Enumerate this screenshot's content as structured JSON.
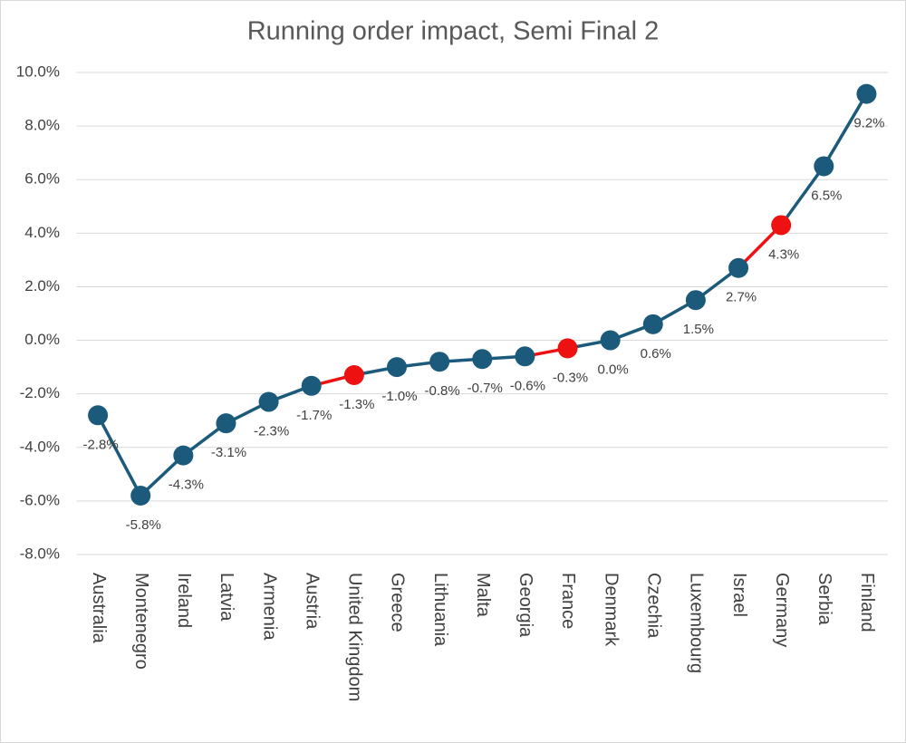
{
  "chart_data": {
    "type": "line",
    "title": "Running order impact, Semi Final 2",
    "categories": [
      "Australia",
      "Montenegro",
      "Ireland",
      "Latvia",
      "Armenia",
      "Austria",
      "United Kingdom",
      "Greece",
      "Lithuania",
      "Malta",
      "Georgia",
      "France",
      "Denmark",
      "Czechia",
      "Luxembourg",
      "Israel",
      "Germany",
      "Serbia",
      "Finland"
    ],
    "values": [
      -2.8,
      -5.8,
      -4.3,
      -3.1,
      -2.3,
      -1.7,
      -1.3,
      -1.0,
      -0.8,
      -0.7,
      -0.6,
      -0.3,
      0.0,
      0.6,
      1.5,
      2.7,
      4.3,
      6.5,
      9.2
    ],
    "value_labels": [
      "-2.8%",
      "-5.8%",
      "-4.3%",
      "-3.1%",
      "-2.3%",
      "-1.7%",
      "-1.3%",
      "-1.0%",
      "-0.8%",
      "-0.7%",
      "-0.6%",
      "-0.3%",
      "0.0%",
      "0.6%",
      "1.5%",
      "2.7%",
      "4.3%",
      "6.5%",
      "9.2%"
    ],
    "point_colors": [
      "#1b5a7a",
      "#1b5a7a",
      "#1b5a7a",
      "#1b5a7a",
      "#1b5a7a",
      "#1b5a7a",
      "#ee1111",
      "#1b5a7a",
      "#1b5a7a",
      "#1b5a7a",
      "#1b5a7a",
      "#ee1111",
      "#1b5a7a",
      "#1b5a7a",
      "#1b5a7a",
      "#1b5a7a",
      "#ee1111",
      "#1b5a7a",
      "#1b5a7a"
    ],
    "ylim": [
      -8,
      10
    ],
    "yticks": [
      {
        "value": -8,
        "label": "-8.0%"
      },
      {
        "value": -6,
        "label": "-6.0%"
      },
      {
        "value": -4,
        "label": "-4.0%"
      },
      {
        "value": -2,
        "label": "-2.0%"
      },
      {
        "value": 0,
        "label": "0.0%"
      },
      {
        "value": 2,
        "label": "2.0%"
      },
      {
        "value": 4,
        "label": "4.0%"
      },
      {
        "value": 6,
        "label": "6.0%"
      },
      {
        "value": 8,
        "label": "8.0%"
      },
      {
        "value": 10,
        "label": "10.0%"
      }
    ],
    "grid": true
  }
}
